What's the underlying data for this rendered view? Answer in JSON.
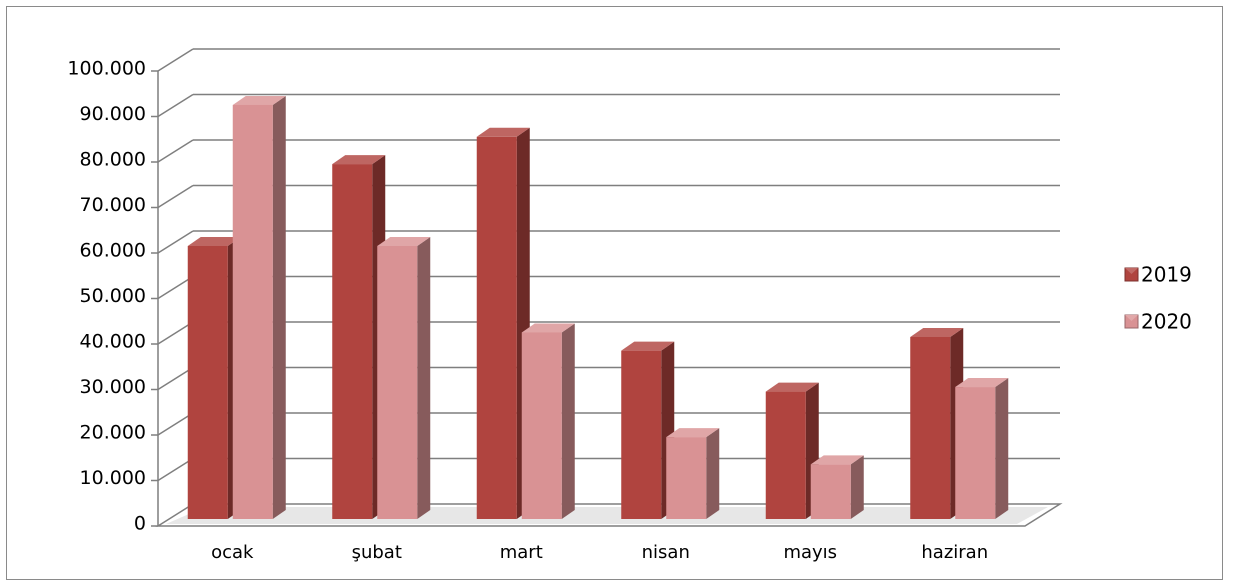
{
  "chart_data": {
    "type": "bar",
    "title": "",
    "xlabel": "",
    "ylabel": "",
    "categories": [
      "ocak",
      "şubat",
      "mart",
      "nisan",
      "mayıs",
      "haziran"
    ],
    "series": [
      {
        "name": "2019",
        "values": [
          60000,
          78000,
          84000,
          37000,
          28000,
          40000
        ],
        "color": "#b0443f"
      },
      {
        "name": "2020",
        "values": [
          91000,
          60000,
          41000,
          18000,
          12000,
          29000
        ],
        "color": "#d99294"
      }
    ],
    "ylim": [
      0,
      100000
    ],
    "yticks": [
      {
        "value": 0,
        "label": "0"
      },
      {
        "value": 10000,
        "label": "10.000"
      },
      {
        "value": 20000,
        "label": "20.000"
      },
      {
        "value": 30000,
        "label": "30.000"
      },
      {
        "value": 40000,
        "label": "40.000"
      },
      {
        "value": 50000,
        "label": "50.000"
      },
      {
        "value": 60000,
        "label": "60.000"
      },
      {
        "value": 70000,
        "label": "70.000"
      },
      {
        "value": 80000,
        "label": "80.000"
      },
      {
        "value": 90000,
        "label": "90.000"
      },
      {
        "value": 100000,
        "label": "100.000"
      }
    ],
    "grid": true,
    "legend_position": "right",
    "style": "3d-clustered-column"
  }
}
